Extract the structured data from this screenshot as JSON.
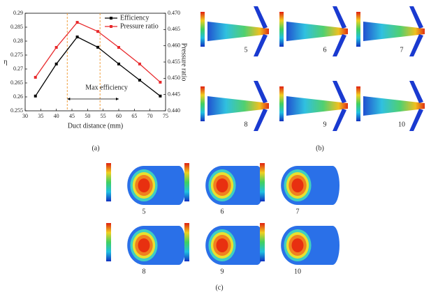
{
  "chart_data": {
    "type": "line",
    "xlabel": "Duct distance (mm)",
    "ylabel": "η",
    "y2label": "Pressure ratio",
    "x": [
      33.3,
      40,
      46.7,
      53.3,
      60,
      66.7,
      73.3
    ],
    "series": [
      {
        "name": "Efficiency",
        "color": "#000000",
        "values": [
          0.2603,
          0.2718,
          0.2815,
          0.2778,
          0.2718,
          0.266,
          0.2603
        ]
      },
      {
        "name": "Pressure ratio",
        "color": "#e8282b",
        "axis": "y2",
        "values": [
          0.4503,
          0.4595,
          0.4672,
          0.4644,
          0.4595,
          0.4544,
          0.4488
        ]
      }
    ],
    "xlim": [
      30,
      75
    ],
    "xticks": [
      30,
      35,
      40,
      45,
      50,
      55,
      60,
      65,
      70,
      75
    ],
    "ylim": [
      0.255,
      0.29
    ],
    "yticks": [
      0.255,
      0.26,
      0.265,
      0.27,
      0.275,
      0.28,
      0.285,
      0.29
    ],
    "y2lim": [
      0.44,
      0.47
    ],
    "y2ticks": [
      {
        "value": 0.44,
        "label": "0.440"
      },
      0.445,
      {
        "value": 0.45,
        "label": "0.450"
      },
      0.455,
      {
        "value": 0.46,
        "label": "0.460"
      },
      0.465,
      {
        "value": 0.47,
        "label": "0.470"
      }
    ],
    "vlines": [
      43.5,
      54
    ],
    "vline_color": "#f0a040",
    "annotation": {
      "text": "Max efficiency",
      "from": 43.5,
      "to": 60
    },
    "legend": "upper right",
    "panel_label": "(a)"
  },
  "panels": {
    "b": {
      "label": "(b)",
      "items": [
        "5",
        "6",
        "7",
        "8",
        "9",
        "10"
      ]
    },
    "c": {
      "label": "(c)",
      "items": [
        "5",
        "6",
        "7",
        "8",
        "9",
        "10"
      ]
    }
  }
}
